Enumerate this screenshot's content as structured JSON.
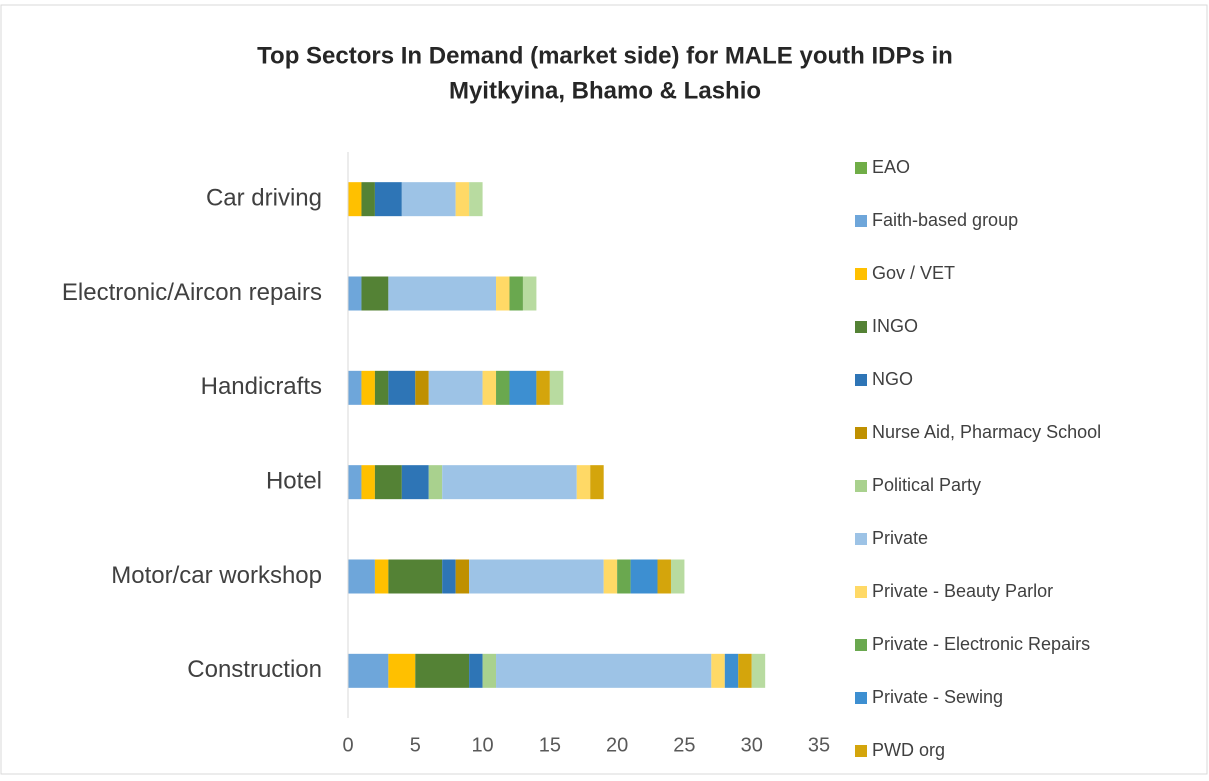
{
  "chart_data": {
    "type": "stacked_barh",
    "title": [
      "Top Sectors In Demand (market side) for MALE youth IDPs in",
      "Myitkyina, Bhamo & Lashio"
    ],
    "categories": [
      "Car driving",
      "Electronic/Aircon repairs",
      "Handicrafts",
      "Hotel",
      "Motor/car workshop",
      "Construction"
    ],
    "series": [
      {
        "name": "EAO",
        "color": "#70ad47",
        "values": [
          0,
          0,
          0,
          0,
          0,
          0
        ]
      },
      {
        "name": "Faith-based group",
        "color": "#6ea6da",
        "values": [
          0,
          1,
          1,
          1,
          2,
          3
        ]
      },
      {
        "name": "Gov / VET",
        "color": "#ffc000",
        "values": [
          1,
          0,
          1,
          1,
          1,
          2
        ]
      },
      {
        "name": "INGO",
        "color": "#548235",
        "values": [
          1,
          2,
          1,
          2,
          4,
          4
        ]
      },
      {
        "name": "NGO",
        "color": "#2e75b6",
        "values": [
          2,
          0,
          2,
          2,
          1,
          1
        ]
      },
      {
        "name": "Nurse Aid, Pharmacy School",
        "color": "#bf9000",
        "values": [
          0,
          0,
          1,
          0,
          1,
          0
        ]
      },
      {
        "name": "Political Party",
        "color": "#a9d18e",
        "values": [
          0,
          0,
          0,
          1,
          0,
          1
        ]
      },
      {
        "name": "Private",
        "color": "#9dc3e6",
        "values": [
          4,
          8,
          4,
          10,
          10,
          16
        ]
      },
      {
        "name": "Private - Beauty Parlor",
        "color": "#ffd966",
        "values": [
          1,
          1,
          1,
          1,
          1,
          1
        ]
      },
      {
        "name": "Private - Electronic Repairs",
        "color": "#6aa84f",
        "values": [
          0,
          1,
          1,
          0,
          1,
          0
        ]
      },
      {
        "name": "Private - Sewing",
        "color": "#3d8fd1",
        "values": [
          0,
          0,
          2,
          0,
          2,
          1
        ]
      },
      {
        "name": "PWD org",
        "color": "#d4a50c",
        "values": [
          0,
          0,
          1,
          1,
          1,
          1
        ]
      },
      {
        "name": null,
        "color": "#b8dba0",
        "values": [
          1,
          1,
          1,
          0,
          1,
          1
        ]
      }
    ],
    "xlim": [
      0,
      35
    ],
    "xticks": [
      0,
      5,
      10,
      15,
      20,
      25,
      30,
      35
    ]
  }
}
